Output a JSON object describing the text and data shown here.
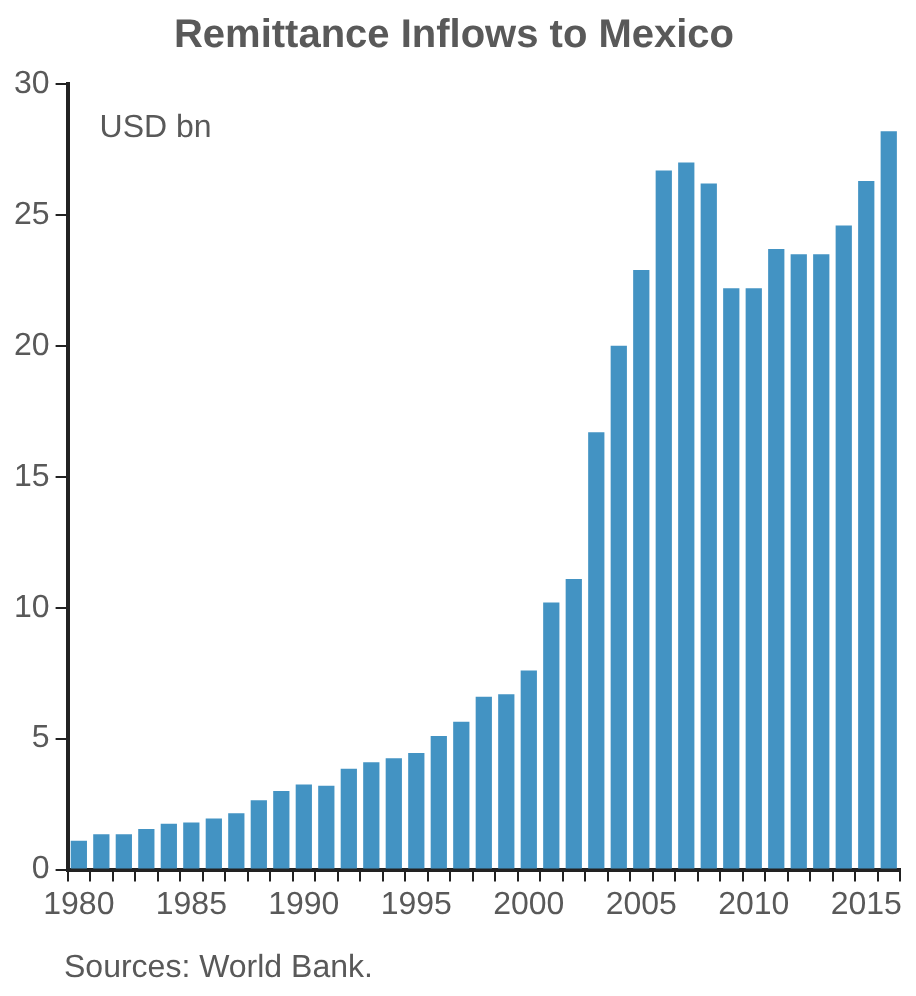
{
  "chart_data": {
    "type": "bar",
    "title": "Remittance Inflows to Mexico",
    "ylabel": "USD bn",
    "categories": [
      "1980",
      null,
      null,
      null,
      null,
      "1985",
      null,
      null,
      null,
      null,
      "1990",
      null,
      null,
      null,
      null,
      "1995",
      null,
      null,
      null,
      null,
      "2000",
      null,
      null,
      null,
      null,
      "2005",
      null,
      null,
      null,
      null,
      "2010",
      null,
      null,
      null,
      null,
      "2015",
      null
    ],
    "values": [
      1.1,
      1.35,
      1.35,
      1.55,
      1.75,
      1.8,
      1.95,
      2.15,
      2.65,
      3.0,
      3.25,
      3.2,
      3.85,
      4.1,
      4.25,
      4.45,
      5.1,
      5.65,
      6.6,
      6.7,
      7.6,
      10.2,
      11.1,
      16.7,
      20.0,
      22.9,
      26.7,
      27.0,
      26.2,
      22.2,
      22.2,
      23.7,
      23.5,
      23.5,
      24.6,
      26.3,
      28.2
    ],
    "color": "#4393c3",
    "ylim": [
      0,
      30
    ],
    "yticks": [
      0,
      5,
      10,
      15,
      20,
      25,
      30
    ],
    "grid": false,
    "legend": false,
    "annotations": [
      "Sources: World Bank."
    ]
  }
}
